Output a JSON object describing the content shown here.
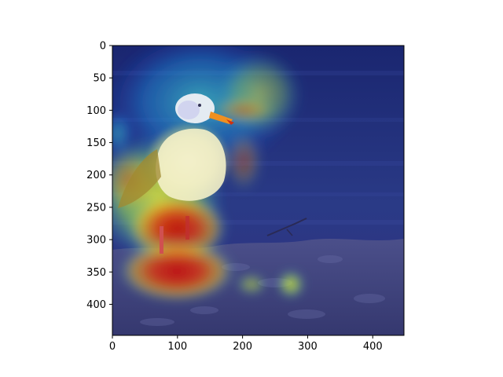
{
  "figure": {
    "image_subject": "seagull standing on rocky shore with heatmap overlay",
    "colormap": "jet",
    "overlay_alpha": 0.5,
    "x_ticks": [
      "0",
      "100",
      "200",
      "300",
      "400"
    ],
    "y_ticks": [
      "0",
      "50",
      "100",
      "150",
      "200",
      "250",
      "300",
      "350",
      "400"
    ],
    "xlim": [
      0,
      448
    ],
    "ylim": [
      448,
      0
    ],
    "colors": {
      "water": "#1e2a6e",
      "heat_low": "#00007f",
      "heat_mid": "#23c6e0",
      "heat_high": "#d01010",
      "bird_body": "#f5f1e6",
      "beak": "#f0a020"
    }
  }
}
